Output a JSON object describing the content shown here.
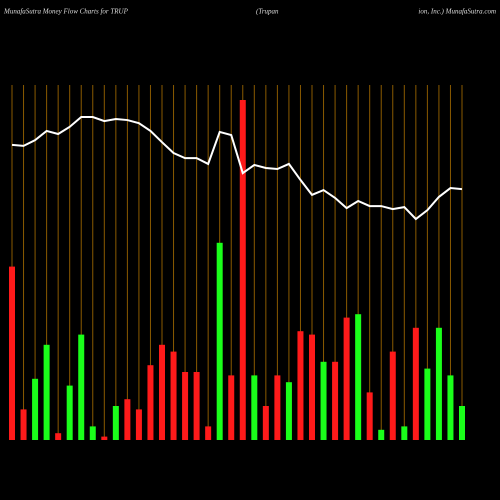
{
  "chart_data": {
    "type": "bar",
    "title": [
      "MunafaSutra  Money Flow  Charts for TRUP",
      "(Trupan",
      "ion,  Inc.) MunafaSutra.com"
    ],
    "categories": [
      null,
      null,
      null,
      null,
      null,
      null,
      null,
      null,
      null,
      null,
      null,
      null,
      null,
      null,
      null,
      null,
      null,
      null,
      null,
      null,
      null,
      null,
      null,
      null,
      null,
      null,
      null,
      null,
      null,
      null,
      null,
      null,
      null,
      null,
      null,
      null,
      null,
      null,
      null,
      null
    ],
    "ylim": [
      0,
      100
    ],
    "grid": true,
    "grid_color": "#8a5a00",
    "series": [
      {
        "type": "bar",
        "values": [
          51,
          9,
          18,
          28,
          2,
          16,
          31,
          4,
          1,
          10,
          12,
          9,
          22,
          28,
          26,
          20,
          20,
          4,
          58,
          19,
          100,
          19,
          10,
          19,
          17,
          32,
          31,
          23,
          23,
          36,
          37,
          14,
          3,
          26,
          4,
          33,
          21,
          33,
          19,
          10
        ],
        "colors": [
          "#ff1a1a",
          "#ff1a1a",
          "#1aff1a",
          "#1aff1a",
          "#ff1a1a",
          "#1aff1a",
          "#1aff1a",
          "#1aff1a",
          "#ff1a1a",
          "#1aff1a",
          "#ff1a1a",
          "#ff1a1a",
          "#ff1a1a",
          "#ff1a1a",
          "#ff1a1a",
          "#ff1a1a",
          "#ff1a1a",
          "#ff1a1a",
          "#1aff1a",
          "#ff1a1a",
          "#ff1a1a",
          "#1aff1a",
          "#ff1a1a",
          "#ff1a1a",
          "#1aff1a",
          "#ff1a1a",
          "#ff1a1a",
          "#1aff1a",
          "#ff1a1a",
          "#ff1a1a",
          "#1aff1a",
          "#ff1a1a",
          "#1aff1a",
          "#ff1a1a",
          "#1aff1a",
          "#ff1a1a",
          "#1aff1a",
          "#1aff1a",
          "#1aff1a",
          "#1aff1a"
        ]
      },
      {
        "type": "line",
        "color": "#ffffff",
        "values": [
          86.8,
          86.5,
          88.2,
          90.9,
          90,
          92.1,
          95,
          95,
          93.8,
          94.4,
          94.1,
          93.2,
          90.9,
          87.6,
          84.4,
          82.9,
          82.9,
          81.2,
          90.6,
          89.7,
          78.5,
          80.9,
          80,
          79.7,
          81.2,
          76.5,
          72.1,
          73.5,
          71.2,
          68.2,
          70.3,
          68.8,
          68.8,
          67.9,
          68.5,
          65,
          67.6,
          71.5,
          74.1,
          73.8
        ]
      }
    ]
  }
}
